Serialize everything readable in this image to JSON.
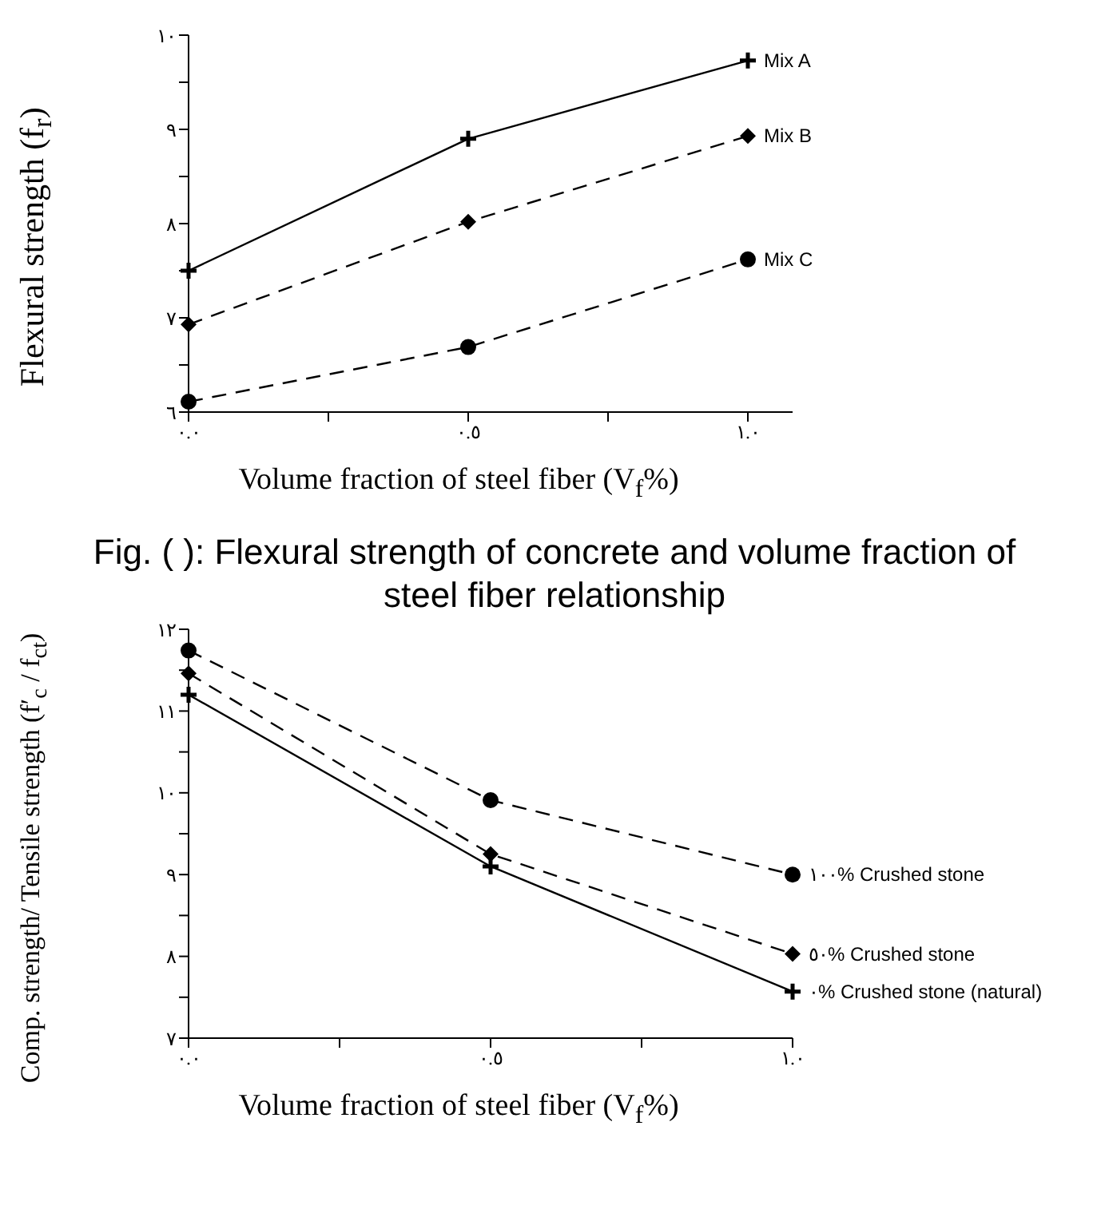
{
  "chart_data": [
    {
      "type": "line",
      "ylabel": "Flexural strength (f$_{r}$)",
      "xlabel": "Volume fraction of steel fiber (V$_{f}$%)",
      "annotations": [
        "Fig. ( ): Flexural strength of concrete and volume fraction of steel fiber relationship"
      ],
      "x": [
        0,
        0.5,
        1
      ],
      "xlim": [
        0,
        1.08
      ],
      "xticks": [
        {
          "value": 0,
          "label": "٠.٠"
        },
        {
          "value": 0.25,
          "label": null
        },
        {
          "value": 0.5,
          "label": "٠.٥"
        },
        {
          "value": 0.75,
          "label": null
        },
        {
          "value": 1,
          "label": "١.٠"
        }
      ],
      "ylim": [
        6,
        10
      ],
      "yticks": [
        {
          "value": 6,
          "label": "٦"
        },
        {
          "value": 6.5,
          "label": null
        },
        {
          "value": 7,
          "label": "٧"
        },
        {
          "value": 7.5,
          "label": null
        },
        {
          "value": 8,
          "label": "٨"
        },
        {
          "value": 8.5,
          "label": null
        },
        {
          "value": 9,
          "label": "٩"
        },
        {
          "value": 9.5,
          "label": null
        },
        {
          "value": 10,
          "label": "١٠"
        }
      ],
      "series": [
        {
          "name": "Mix A",
          "color": "#000000",
          "values": [
            7.5,
            8.9,
            9.73
          ],
          "marker": "cross",
          "line_style": "solid"
        },
        {
          "name": "Mix B",
          "color": "#000000",
          "values": [
            6.93,
            8.02,
            8.93
          ],
          "marker": "diamond",
          "line_style": "dashed"
        },
        {
          "name": "Mix C",
          "color": "#000000",
          "values": [
            6.11,
            6.69,
            7.62
          ],
          "marker": "circle",
          "line_style": "dashed"
        }
      ]
    },
    {
      "type": "line",
      "ylabel": "Comp. strength/ Tensile strength (f′$_{c}$ / f$_{ct}$)",
      "xlabel": "Volume fraction of steel fiber (V$_{f}$%)",
      "x": [
        0,
        0.5,
        1
      ],
      "xlim": [
        0,
        1
      ],
      "xticks": [
        {
          "value": 0,
          "label": "٠.٠"
        },
        {
          "value": 0.25,
          "label": null
        },
        {
          "value": 0.5,
          "label": "٠.٥"
        },
        {
          "value": 0.75,
          "label": null
        },
        {
          "value": 1,
          "label": "١.٠"
        }
      ],
      "ylim": [
        7,
        12
      ],
      "yticks": [
        {
          "value": 7,
          "label": "٧"
        },
        {
          "value": 7.5,
          "label": null
        },
        {
          "value": 8,
          "label": "٨"
        },
        {
          "value": 8.5,
          "label": null
        },
        {
          "value": 9,
          "label": "٩"
        },
        {
          "value": 9.5,
          "label": null
        },
        {
          "value": 10,
          "label": "١٠"
        },
        {
          "value": 10.5,
          "label": null
        },
        {
          "value": 11,
          "label": "١١"
        },
        {
          "value": 11.5,
          "label": null
        },
        {
          "value": 12,
          "label": "١٢"
        }
      ],
      "series": [
        {
          "name": "١٠٠% Crushed stone",
          "color": "#000000",
          "values": [
            11.74,
            9.91,
            9.0
          ],
          "marker": "circle",
          "line_style": "dashed"
        },
        {
          "name": "٥٠% Crushed stone",
          "color": "#000000",
          "values": [
            11.46,
            9.25,
            8.03
          ],
          "marker": "diamond",
          "line_style": "dashed"
        },
        {
          "name": "٠% Crushed stone (natural)",
          "color": "#000000",
          "values": [
            11.2,
            9.1,
            7.57
          ],
          "marker": "cross",
          "line_style": "solid"
        }
      ]
    }
  ]
}
